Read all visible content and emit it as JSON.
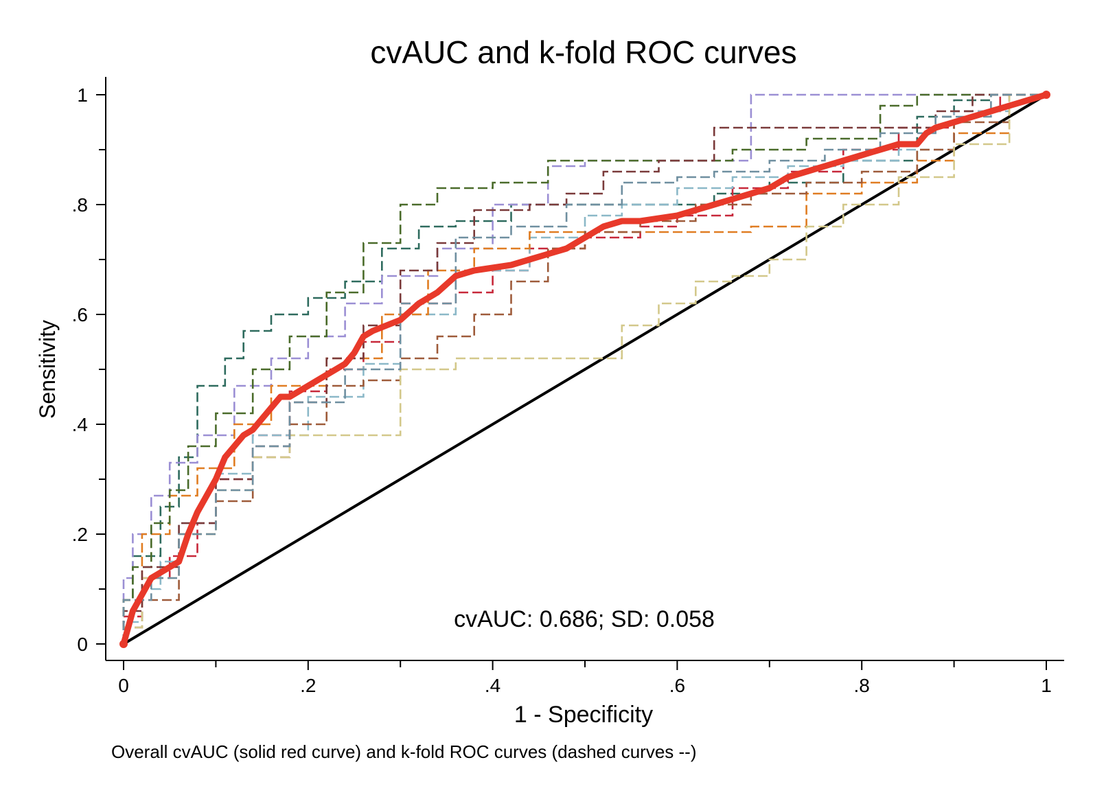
{
  "chart_data": {
    "type": "line",
    "title": "cvAUC and k-fold ROC curves",
    "xlabel": "1 - Specificity",
    "ylabel": "Sensitivity",
    "xlim": [
      0,
      1
    ],
    "ylim": [
      0,
      1
    ],
    "x_ticks": [
      0,
      0.2,
      0.4,
      0.6,
      0.8,
      1
    ],
    "x_tick_labels": [
      "0",
      ".2",
      ".4",
      ".6",
      ".8",
      "1"
    ],
    "x_minor_ticks": [
      0.1,
      0.3,
      0.5,
      0.7,
      0.9
    ],
    "y_ticks": [
      0,
      0.2,
      0.4,
      0.6,
      0.8,
      1
    ],
    "y_tick_labels": [
      "0",
      ".2",
      ".4",
      ".6",
      ".8",
      "1"
    ],
    "y_minor_ticks": [
      0.1,
      0.3,
      0.5,
      0.7,
      0.9
    ],
    "grid": false,
    "annotation": "cvAUC: 0.686; SD: 0.058",
    "note": "Overall cvAUC (solid red curve) and k-fold ROC curves (dashed curves --)",
    "reference_line": {
      "x": [
        0,
        1
      ],
      "y": [
        0,
        1
      ],
      "color": "#000000"
    },
    "overall_curve": {
      "color": "#e8392a",
      "x": [
        0,
        0.01,
        0.02,
        0.03,
        0.04,
        0.06,
        0.07,
        0.08,
        0.09,
        0.1,
        0.11,
        0.12,
        0.13,
        0.14,
        0.15,
        0.16,
        0.17,
        0.18,
        0.2,
        0.22,
        0.24,
        0.25,
        0.26,
        0.27,
        0.3,
        0.32,
        0.34,
        0.36,
        0.38,
        0.42,
        0.44,
        0.46,
        0.48,
        0.5,
        0.52,
        0.54,
        0.56,
        0.6,
        0.62,
        0.64,
        0.66,
        0.68,
        0.7,
        0.72,
        0.74,
        0.76,
        0.78,
        0.8,
        0.82,
        0.84,
        0.86,
        0.87,
        0.88,
        0.9,
        0.92,
        0.94,
        0.96,
        0.98,
        1
      ],
      "y": [
        0,
        0.06,
        0.09,
        0.12,
        0.13,
        0.15,
        0.2,
        0.24,
        0.27,
        0.3,
        0.34,
        0.36,
        0.38,
        0.39,
        0.41,
        0.43,
        0.45,
        0.45,
        0.47,
        0.49,
        0.51,
        0.53,
        0.56,
        0.57,
        0.59,
        0.62,
        0.64,
        0.67,
        0.68,
        0.69,
        0.7,
        0.71,
        0.72,
        0.74,
        0.76,
        0.77,
        0.77,
        0.78,
        0.79,
        0.8,
        0.81,
        0.82,
        0.83,
        0.85,
        0.86,
        0.87,
        0.88,
        0.89,
        0.9,
        0.91,
        0.91,
        0.93,
        0.94,
        0.95,
        0.96,
        0.97,
        0.98,
        0.99,
        1
      ]
    },
    "series": [
      {
        "color": "#2e6b5e",
        "x": [
          0,
          0.01,
          0.04,
          0.06,
          0.08,
          0.11,
          0.13,
          0.16,
          0.2,
          0.24,
          0.28,
          0.32,
          0.36,
          0.42,
          0.5,
          0.58,
          0.64,
          0.7,
          0.78,
          0.86,
          0.9,
          0.94,
          1
        ],
        "y": [
          0,
          0.08,
          0.16,
          0.25,
          0.34,
          0.47,
          0.52,
          0.57,
          0.6,
          0.63,
          0.66,
          0.72,
          0.76,
          0.77,
          0.8,
          0.8,
          0.8,
          0.82,
          0.84,
          0.88,
          0.96,
          0.99,
          1
        ]
      },
      {
        "color": "#c7283a",
        "x": [
          0,
          0.02,
          0.05,
          0.08,
          0.1,
          0.14,
          0.18,
          0.22,
          0.26,
          0.3,
          0.36,
          0.4,
          0.44,
          0.5,
          0.56,
          0.6,
          0.66,
          0.72,
          0.78,
          0.84,
          0.9,
          0.95,
          1
        ],
        "y": [
          0,
          0.05,
          0.12,
          0.16,
          0.22,
          0.3,
          0.38,
          0.46,
          0.5,
          0.55,
          0.62,
          0.64,
          0.68,
          0.72,
          0.74,
          0.76,
          0.78,
          0.83,
          0.86,
          0.9,
          0.94,
          0.97,
          1
        ]
      },
      {
        "color": "#9b8fd4",
        "x": [
          0,
          0.01,
          0.03,
          0.05,
          0.08,
          0.12,
          0.16,
          0.2,
          0.24,
          0.28,
          0.34,
          0.4,
          0.46,
          0.5,
          0.56,
          0.62,
          0.68,
          0.72,
          0.8,
          0.88,
          0.94,
          1
        ],
        "y": [
          0,
          0.12,
          0.2,
          0.27,
          0.33,
          0.38,
          0.47,
          0.52,
          0.56,
          0.62,
          0.67,
          0.72,
          0.8,
          0.87,
          0.88,
          0.88,
          0.88,
          1,
          1,
          1,
          1,
          1
        ]
      },
      {
        "color": "#8bb8c8",
        "x": [
          0,
          0.02,
          0.04,
          0.06,
          0.1,
          0.14,
          0.2,
          0.26,
          0.3,
          0.36,
          0.44,
          0.5,
          0.54,
          0.6,
          0.66,
          0.72,
          0.78,
          0.84,
          0.9,
          0.96,
          1
        ],
        "y": [
          0,
          0.04,
          0.1,
          0.15,
          0.22,
          0.31,
          0.38,
          0.45,
          0.51,
          0.6,
          0.68,
          0.74,
          0.78,
          0.8,
          0.83,
          0.85,
          0.87,
          0.88,
          0.9,
          0.97,
          1
        ]
      },
      {
        "color": "#e07d22",
        "x": [
          0,
          0.02,
          0.05,
          0.08,
          0.12,
          0.16,
          0.22,
          0.28,
          0.33,
          0.38,
          0.44,
          0.5,
          0.56,
          0.62,
          0.68,
          0.74,
          0.8,
          0.86,
          0.9,
          0.96,
          1
        ],
        "y": [
          0,
          0.08,
          0.2,
          0.27,
          0.32,
          0.4,
          0.47,
          0.52,
          0.6,
          0.68,
          0.72,
          0.75,
          0.75,
          0.75,
          0.75,
          0.76,
          0.82,
          0.84,
          0.88,
          0.93,
          1
        ]
      },
      {
        "color": "#4a6b2a",
        "x": [
          0,
          0.01,
          0.03,
          0.05,
          0.07,
          0.1,
          0.14,
          0.18,
          0.22,
          0.26,
          0.3,
          0.34,
          0.4,
          0.46,
          0.52,
          0.6,
          0.66,
          0.74,
          0.82,
          0.86,
          0.9,
          0.96,
          1
        ],
        "y": [
          0,
          0.08,
          0.14,
          0.22,
          0.28,
          0.36,
          0.42,
          0.5,
          0.56,
          0.64,
          0.73,
          0.8,
          0.83,
          0.84,
          0.88,
          0.88,
          0.88,
          0.9,
          0.92,
          0.98,
          1,
          1,
          1
        ]
      },
      {
        "color": "#9e5b3a",
        "x": [
          0,
          0.02,
          0.06,
          0.1,
          0.14,
          0.18,
          0.22,
          0.26,
          0.3,
          0.34,
          0.38,
          0.42,
          0.46,
          0.5,
          0.56,
          0.62,
          0.68,
          0.74,
          0.8,
          0.86,
          0.9,
          0.96,
          1
        ],
        "y": [
          0,
          0.03,
          0.08,
          0.2,
          0.26,
          0.34,
          0.4,
          0.47,
          0.48,
          0.52,
          0.56,
          0.6,
          0.66,
          0.72,
          0.75,
          0.77,
          0.8,
          0.82,
          0.84,
          0.86,
          0.9,
          0.95,
          1
        ]
      },
      {
        "color": "#d3c88a",
        "x": [
          0,
          0.02,
          0.06,
          0.1,
          0.14,
          0.18,
          0.22,
          0.26,
          0.3,
          0.36,
          0.42,
          0.46,
          0.5,
          0.54,
          0.58,
          0.62,
          0.66,
          0.7,
          0.74,
          0.78,
          0.84,
          0.9,
          0.96,
          1
        ],
        "y": [
          0,
          0.03,
          0.12,
          0.2,
          0.28,
          0.34,
          0.38,
          0.38,
          0.38,
          0.5,
          0.52,
          0.52,
          0.52,
          0.52,
          0.58,
          0.62,
          0.66,
          0.67,
          0.7,
          0.76,
          0.8,
          0.85,
          0.91,
          1
        ]
      },
      {
        "color": "#7a3a3a",
        "x": [
          0,
          0.02,
          0.06,
          0.1,
          0.14,
          0.18,
          0.22,
          0.26,
          0.3,
          0.34,
          0.38,
          0.44,
          0.48,
          0.52,
          0.58,
          0.64,
          0.72,
          0.8,
          0.88,
          0.92,
          1
        ],
        "y": [
          0,
          0.06,
          0.14,
          0.22,
          0.3,
          0.36,
          0.44,
          0.52,
          0.58,
          0.68,
          0.73,
          0.79,
          0.8,
          0.82,
          0.86,
          0.88,
          0.94,
          0.94,
          0.94,
          0.97,
          1
        ]
      },
      {
        "color": "#6f8fa0",
        "x": [
          0,
          0.03,
          0.06,
          0.1,
          0.14,
          0.18,
          0.24,
          0.3,
          0.36,
          0.42,
          0.48,
          0.54,
          0.6,
          0.64,
          0.7,
          0.76,
          0.82,
          0.88,
          0.94,
          1
        ],
        "y": [
          0,
          0.08,
          0.12,
          0.2,
          0.28,
          0.36,
          0.44,
          0.5,
          0.62,
          0.74,
          0.76,
          0.8,
          0.84,
          0.85,
          0.86,
          0.88,
          0.9,
          0.93,
          0.96,
          1
        ]
      }
    ]
  }
}
